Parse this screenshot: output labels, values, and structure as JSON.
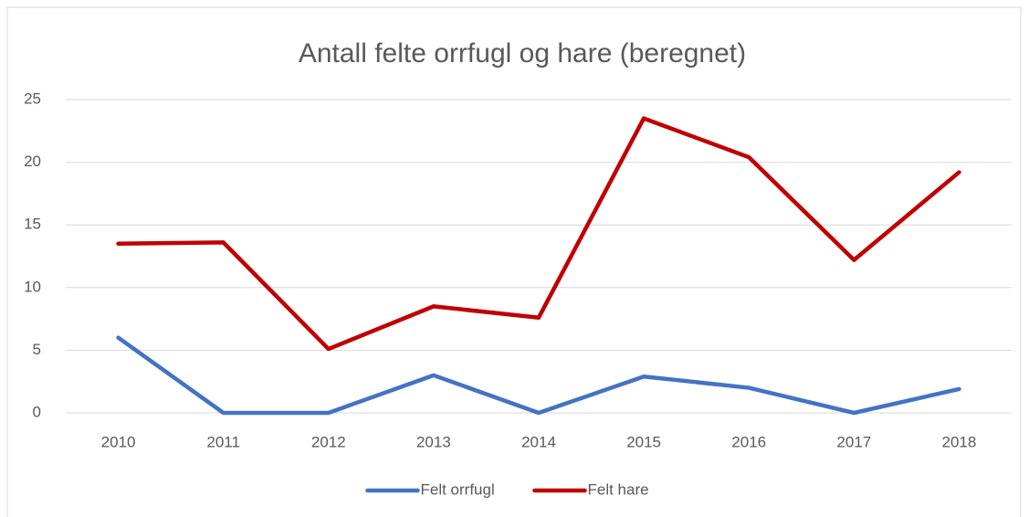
{
  "chart_data": {
    "type": "line",
    "title": "Antall felte orrfugl og hare (beregnet)",
    "categories": [
      "2010",
      "2011",
      "2012",
      "2013",
      "2014",
      "2015",
      "2016",
      "2017",
      "2018"
    ],
    "series": [
      {
        "name": "Felt orrfugl",
        "color": "#4472c4",
        "values": [
          6,
          0,
          0,
          3,
          0,
          2.9,
          2,
          0,
          1.9
        ]
      },
      {
        "name": "Felt hare",
        "color": "#c00000",
        "values": [
          13.5,
          13.6,
          5.1,
          8.5,
          7.6,
          23.5,
          20.4,
          12.2,
          19.2
        ]
      }
    ],
    "ylim": [
      0,
      25
    ],
    "yticks": [
      0,
      5,
      10,
      15,
      20,
      25
    ],
    "grid": true,
    "legend": "bottom"
  }
}
